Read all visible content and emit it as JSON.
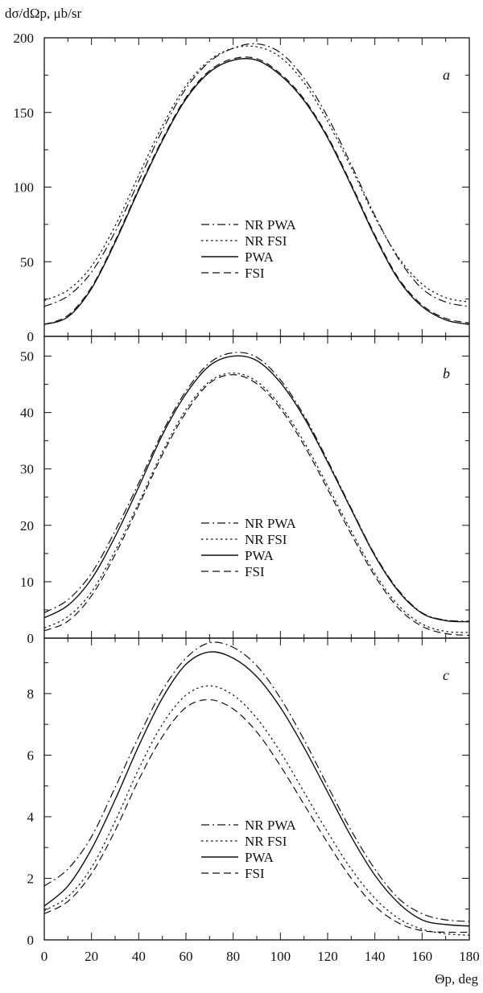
{
  "figure": {
    "ylabel": "dσ/dΩp, μb/sr",
    "xlabel": "Θp, deg"
  },
  "chart_data": [
    {
      "type": "line",
      "panel": "a",
      "xlim": [
        0,
        180
      ],
      "ylim": [
        0,
        200
      ],
      "yticks": [
        0,
        50,
        100,
        150,
        200
      ],
      "x": [
        0,
        10,
        20,
        30,
        40,
        50,
        60,
        70,
        80,
        90,
        100,
        110,
        120,
        130,
        140,
        150,
        160,
        170,
        180
      ],
      "series": [
        {
          "name": "NR PWA",
          "style": "dashdot",
          "values": [
            20,
            27,
            43,
            70,
            104,
            138,
            166,
            184,
            193,
            196,
            190,
            173,
            147,
            115,
            81,
            52,
            32,
            23,
            20
          ]
        },
        {
          "name": "NR FSI",
          "style": "dotted",
          "values": [
            24,
            31,
            47,
            74,
            108,
            141,
            168,
            185,
            193,
            194,
            187,
            170,
            144,
            113,
            80,
            53,
            35,
            26,
            23
          ]
        },
        {
          "name": "PWA",
          "style": "solid",
          "values": [
            8,
            13,
            32,
            63,
            98,
            131,
            159,
            177,
            185,
            185,
            175,
            158,
            133,
            101,
            67,
            38,
            20,
            11,
            8
          ]
        },
        {
          "name": "FSI",
          "style": "dashed",
          "values": [
            8,
            14,
            33,
            64,
            99,
            132,
            160,
            178,
            186,
            186,
            176,
            159,
            134,
            102,
            68,
            39,
            21,
            12,
            9
          ]
        }
      ]
    },
    {
      "type": "line",
      "panel": "b",
      "xlim": [
        0,
        180
      ],
      "ylim": [
        0,
        53.5
      ],
      "yticks": [
        0,
        10,
        20,
        30,
        40,
        50
      ],
      "x": [
        0,
        10,
        20,
        30,
        40,
        50,
        60,
        70,
        80,
        90,
        100,
        110,
        120,
        130,
        140,
        150,
        160,
        170,
        180
      ],
      "series": [
        {
          "name": "NR PWA",
          "style": "dashdot",
          "values": [
            4.5,
            6.8,
            11.5,
            19,
            27.5,
            36.5,
            43.8,
            48.8,
            50.6,
            49.8,
            45.8,
            39.5,
            31.5,
            23,
            14.8,
            8.5,
            4.5,
            3.2,
            3.0
          ]
        },
        {
          "name": "NR FSI",
          "style": "dotted",
          "values": [
            1.8,
            3.8,
            8.2,
            15.5,
            24,
            33,
            40.5,
            45.5,
            47,
            45.5,
            41.2,
            34.8,
            27,
            19,
            11.5,
            5.8,
            2.5,
            1.2,
            1.0
          ]
        },
        {
          "name": "PWA",
          "style": "solid",
          "values": [
            3.6,
            5.8,
            10.5,
            18,
            26.8,
            36,
            43.3,
            48.3,
            50.0,
            49.2,
            45.3,
            39.1,
            31.2,
            22.8,
            14.6,
            8.3,
            4.4,
            3.1,
            2.9
          ]
        },
        {
          "name": "FSI",
          "style": "dashed",
          "values": [
            1.3,
            3.0,
            7.5,
            14.8,
            23.5,
            32.5,
            40,
            45.2,
            46.7,
            45.1,
            40.7,
            34.2,
            26.4,
            18.4,
            11.0,
            5.3,
            2.1,
            0.8,
            0.5
          ]
        }
      ]
    },
    {
      "type": "line",
      "panel": "c",
      "xlim": [
        0,
        180
      ],
      "ylim": [
        0,
        9.8
      ],
      "yticks": [
        2,
        4,
        6,
        8
      ],
      "x": [
        0,
        10,
        20,
        30,
        40,
        50,
        60,
        70,
        80,
        90,
        100,
        110,
        120,
        130,
        140,
        150,
        160,
        170,
        180
      ],
      "series": [
        {
          "name": "NR PWA",
          "style": "dashdot",
          "values": [
            1.75,
            2.3,
            3.35,
            4.95,
            6.6,
            8.1,
            9.15,
            9.65,
            9.5,
            8.9,
            7.85,
            6.5,
            5.0,
            3.55,
            2.3,
            1.35,
            0.85,
            0.65,
            0.6
          ]
        },
        {
          "name": "NR FSI",
          "style": "dotted",
          "values": [
            0.95,
            1.4,
            2.35,
            3.85,
            5.55,
            7.0,
            7.95,
            8.25,
            7.95,
            7.2,
            6.1,
            4.8,
            3.5,
            2.3,
            1.35,
            0.7,
            0.35,
            0.2,
            0.15
          ]
        },
        {
          "name": "PWA",
          "style": "solid",
          "values": [
            1.1,
            1.75,
            2.95,
            4.55,
            6.3,
            7.85,
            8.95,
            9.35,
            9.15,
            8.55,
            7.55,
            6.25,
            4.8,
            3.35,
            2.1,
            1.2,
            0.65,
            0.5,
            0.45
          ]
        },
        {
          "name": "FSI",
          "style": "dashed",
          "values": [
            0.85,
            1.25,
            2.15,
            3.55,
            5.2,
            6.6,
            7.55,
            7.8,
            7.5,
            6.75,
            5.65,
            4.4,
            3.15,
            2.0,
            1.1,
            0.55,
            0.3,
            0.25,
            0.25
          ]
        }
      ]
    }
  ],
  "xticks": [
    0,
    20,
    40,
    60,
    80,
    100,
    120,
    140,
    160,
    180
  ],
  "legend": [
    {
      "label": "NR PWA",
      "style": "dashdot"
    },
    {
      "label": "NR FSI",
      "style": "dotted"
    },
    {
      "label": "PWA",
      "style": "solid"
    },
    {
      "label": "FSI",
      "style": "dashed"
    }
  ],
  "colors": {
    "line": "#111111",
    "axis": "#111111"
  }
}
